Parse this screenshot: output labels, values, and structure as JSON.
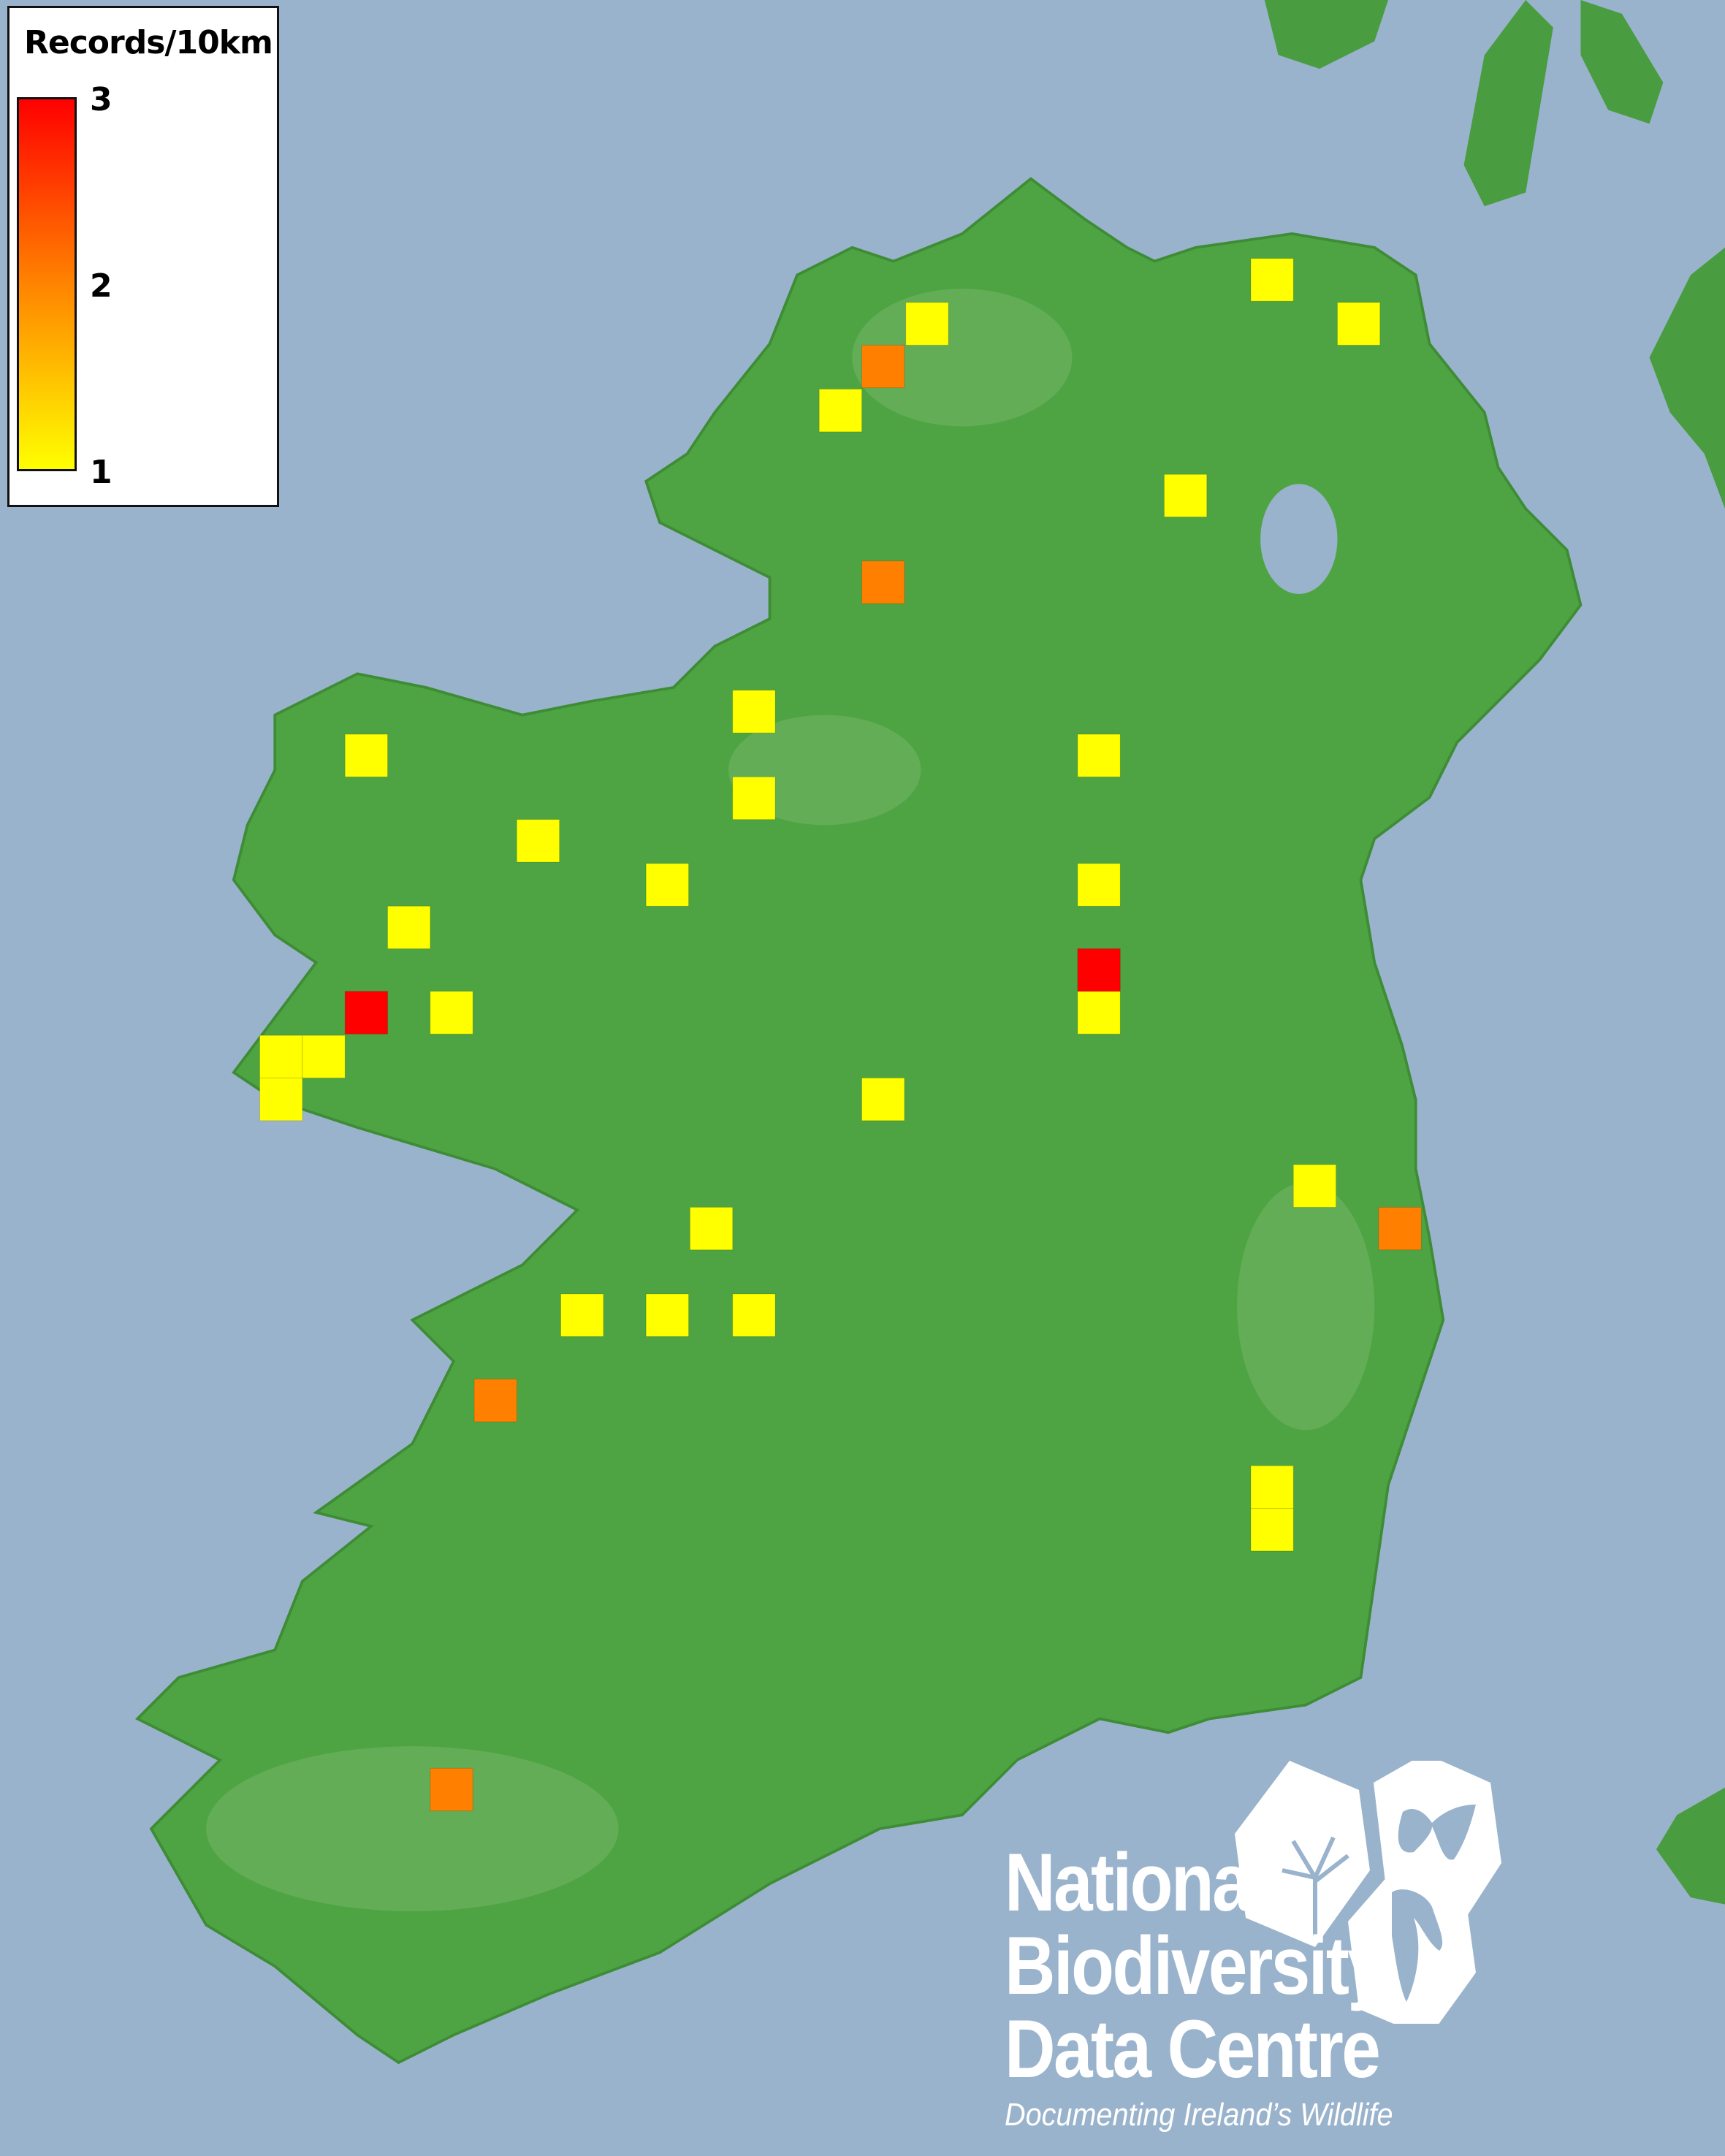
{
  "legend": {
    "title": "Records/10km",
    "max_label": "3",
    "mid_label": "2",
    "min_label": "1",
    "scale_colors": {
      "1": "#ffff00",
      "2": "#ff8000",
      "3": "#ff0000"
    }
  },
  "map": {
    "sea_color": "#9ab3cc",
    "land_color": "#4ea443",
    "records_per_square": [
      1,
      1,
      1,
      1,
      1,
      1,
      1,
      1,
      1,
      1,
      1,
      1,
      1,
      1,
      1,
      1,
      1,
      1,
      1,
      1,
      1,
      1,
      1,
      1,
      1,
      1,
      2,
      2,
      2,
      2,
      2,
      3,
      3
    ]
  },
  "logo": {
    "line1": "National",
    "line2": "Biodiversity",
    "line3": "Data Centre",
    "tagline": "Documenting Ireland’s Wildlife"
  }
}
